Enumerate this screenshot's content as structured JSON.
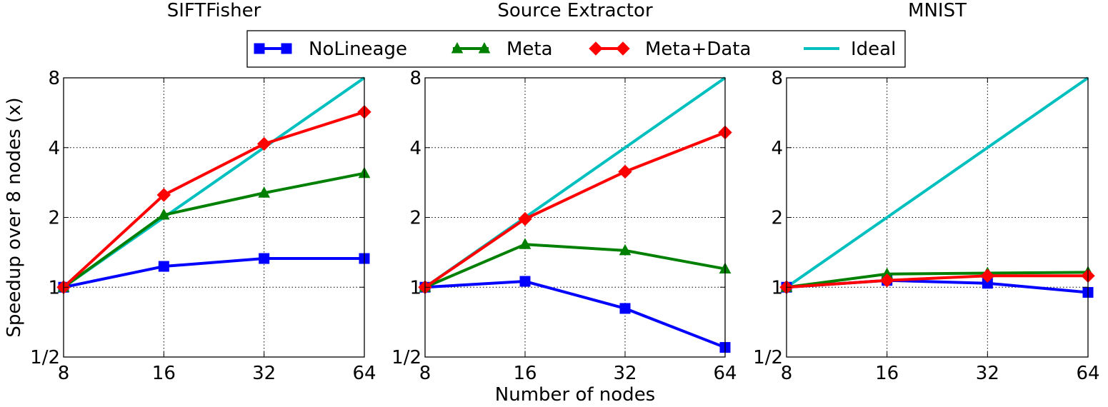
{
  "chart_data": [
    {
      "type": "line",
      "title": "SIFTFisher",
      "ylabel": "Speedup over 8 nodes (x)",
      "xlabel": "",
      "x": [
        8,
        16,
        32,
        64
      ],
      "xscale": "log2",
      "yscale": "log2",
      "ylim": [
        0.5,
        8
      ],
      "xticks": [
        "8",
        "16",
        "32",
        "64"
      ],
      "yticks": [
        "1/2",
        "1",
        "2",
        "4",
        "8"
      ],
      "grid": true,
      "series": [
        {
          "name": "NoLineage",
          "values": [
            1.0,
            1.23,
            1.33,
            1.33
          ],
          "color": "#0000ff",
          "marker": "square"
        },
        {
          "name": "Meta",
          "values": [
            1.0,
            2.05,
            2.55,
            3.1
          ],
          "color": "#008000",
          "marker": "triangle"
        },
        {
          "name": "Meta+Data",
          "values": [
            1.0,
            2.5,
            4.15,
            5.7
          ],
          "color": "#ff0000",
          "marker": "diamond"
        },
        {
          "name": "Ideal",
          "values": [
            1,
            2,
            4,
            8
          ],
          "color": "#00bfbf",
          "marker": "none"
        }
      ]
    },
    {
      "type": "line",
      "title": "Source Extractor",
      "ylabel": "",
      "xlabel": "Number of nodes",
      "x": [
        8,
        16,
        32,
        64
      ],
      "xscale": "log2",
      "yscale": "log2",
      "ylim": [
        0.5,
        8
      ],
      "xticks": [
        "8",
        "16",
        "32",
        "64"
      ],
      "yticks": [
        "1/2",
        "1",
        "2",
        "4",
        "8"
      ],
      "grid": true,
      "series": [
        {
          "name": "NoLineage",
          "values": [
            1.0,
            1.06,
            0.81,
            0.55
          ],
          "color": "#0000ff",
          "marker": "square"
        },
        {
          "name": "Meta",
          "values": [
            1.0,
            1.53,
            1.44,
            1.2
          ],
          "color": "#008000",
          "marker": "triangle"
        },
        {
          "name": "Meta+Data",
          "values": [
            1.0,
            1.97,
            3.15,
            4.65
          ],
          "color": "#ff0000",
          "marker": "diamond"
        },
        {
          "name": "Ideal",
          "values": [
            1,
            2,
            4,
            8
          ],
          "color": "#00bfbf",
          "marker": "none"
        }
      ]
    },
    {
      "type": "line",
      "title": "MNIST",
      "ylabel": "",
      "xlabel": "",
      "x": [
        8,
        16,
        32,
        64
      ],
      "xscale": "log2",
      "yscale": "log2",
      "ylim": [
        0.5,
        8
      ],
      "xticks": [
        "8",
        "16",
        "32",
        "64"
      ],
      "yticks": [
        "1/2",
        "1",
        "2",
        "4",
        "8"
      ],
      "grid": true,
      "series": [
        {
          "name": "NoLineage",
          "values": [
            1.0,
            1.07,
            1.04,
            0.95
          ],
          "color": "#0000ff",
          "marker": "square"
        },
        {
          "name": "Meta",
          "values": [
            1.0,
            1.14,
            1.15,
            1.16
          ],
          "color": "#008000",
          "marker": "triangle"
        },
        {
          "name": "Meta+Data",
          "values": [
            1.0,
            1.07,
            1.12,
            1.12
          ],
          "color": "#ff0000",
          "marker": "diamond"
        },
        {
          "name": "Ideal",
          "values": [
            1,
            2,
            4,
            8
          ],
          "color": "#00bfbf",
          "marker": "none"
        }
      ]
    }
  ],
  "legend": {
    "placement": "top-center",
    "entries": [
      {
        "name": "NoLineage",
        "color": "#0000ff",
        "marker": "square"
      },
      {
        "name": "Meta",
        "color": "#008000",
        "marker": "triangle"
      },
      {
        "name": "Meta+Data",
        "color": "#ff0000",
        "marker": "diamond"
      },
      {
        "name": "Ideal",
        "color": "#00bfbf",
        "marker": "none"
      }
    ]
  }
}
